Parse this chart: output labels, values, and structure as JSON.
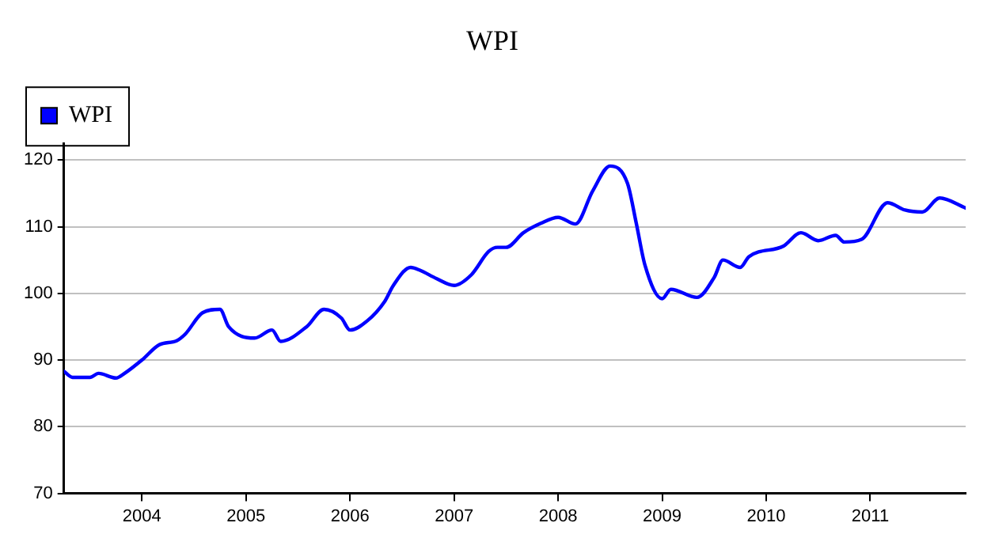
{
  "chart_data": {
    "type": "line",
    "title": "WPI",
    "x": [
      "2003-04",
      "2003-05",
      "2003-07",
      "2003-08",
      "2003-10",
      "2003-11",
      "2004-01",
      "2004-03",
      "2004-05",
      "2004-06",
      "2004-08",
      "2004-10",
      "2004-11",
      "2005-02",
      "2005-04",
      "2005-05",
      "2005-08",
      "2005-10",
      "2005-12",
      "2006-01",
      "2006-03",
      "2006-05",
      "2006-06",
      "2006-08",
      "2006-09",
      "2006-11",
      "2007-01",
      "2007-03",
      "2007-05",
      "2007-06",
      "2007-07",
      "2007-09",
      "2007-11",
      "2008-01",
      "2008-03",
      "2008-05",
      "2008-07",
      "2008-09",
      "2008-10",
      "2008-11",
      "2009-01",
      "2009-02",
      "2009-05",
      "2009-07",
      "2009-08",
      "2009-10",
      "2009-11",
      "2010-03",
      "2010-05",
      "2010-07",
      "2010-09",
      "2010-10",
      "2010-12",
      "2011-03",
      "2011-05",
      "2011-07",
      "2011-09",
      "2011-12"
    ],
    "series": [
      {
        "name": "WPI",
        "color": "#0000ff",
        "values": [
          88.3,
          87.4,
          87.4,
          88.0,
          87.3,
          88.0,
          90.0,
          92.3,
          92.9,
          93.9,
          97.1,
          97.6,
          95.0,
          93.3,
          94.5,
          92.8,
          95.0,
          97.6,
          96.3,
          94.5,
          95.9,
          98.8,
          101.2,
          103.9,
          103.5,
          102.2,
          101.2,
          102.8,
          106.3,
          106.9,
          106.9,
          109.1,
          110.5,
          111.4,
          110.4,
          115.4,
          119.1,
          116.5,
          110.6,
          104.3,
          99.2,
          100.6,
          99.4,
          102.4,
          105.0,
          103.9,
          105.5,
          107.1,
          109.1,
          107.9,
          108.7,
          107.7,
          108.1,
          113.6,
          112.5,
          112.2,
          114.3,
          112.8
        ]
      }
    ],
    "xlim": [
      "2003-04",
      "2011-12"
    ],
    "xticks": [
      "2004",
      "2005",
      "2006",
      "2007",
      "2008",
      "2009",
      "2010",
      "2011"
    ],
    "ylim": [
      70,
      122.5
    ],
    "yticks": [
      70,
      80,
      90,
      100,
      110,
      120
    ],
    "grid": "y",
    "legend": "top left",
    "marker": "none",
    "line_style": "solid"
  }
}
